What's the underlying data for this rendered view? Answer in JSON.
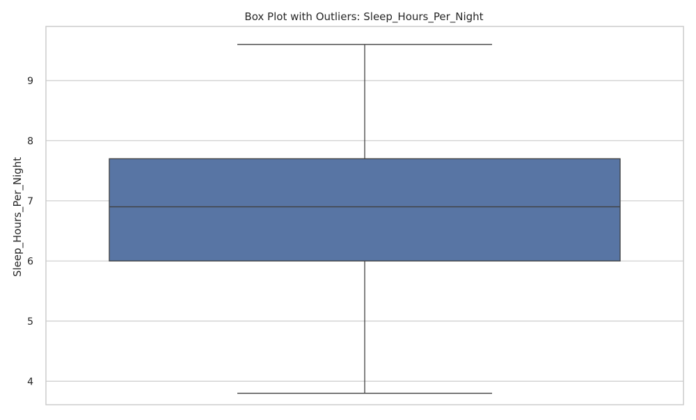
{
  "chart_data": {
    "type": "box",
    "title": "Box Plot with Outliers: Sleep_Hours_Per_Night",
    "xlabel": "",
    "ylabel": "Sleep_Hours_Per_Night",
    "ylim": [
      3.61,
      9.9
    ],
    "yticks": [
      4,
      5,
      6,
      7,
      8,
      9
    ],
    "grid": true,
    "box": {
      "whisker_low": 3.8,
      "q1": 6.0,
      "median": 6.9,
      "q3": 7.7,
      "whisker_high": 9.6
    },
    "outliers": [],
    "colors": {
      "box_fill": "#5875a4",
      "line": "#3f3f3f",
      "grid": "#cccccc",
      "spine": "#cccccc"
    }
  }
}
